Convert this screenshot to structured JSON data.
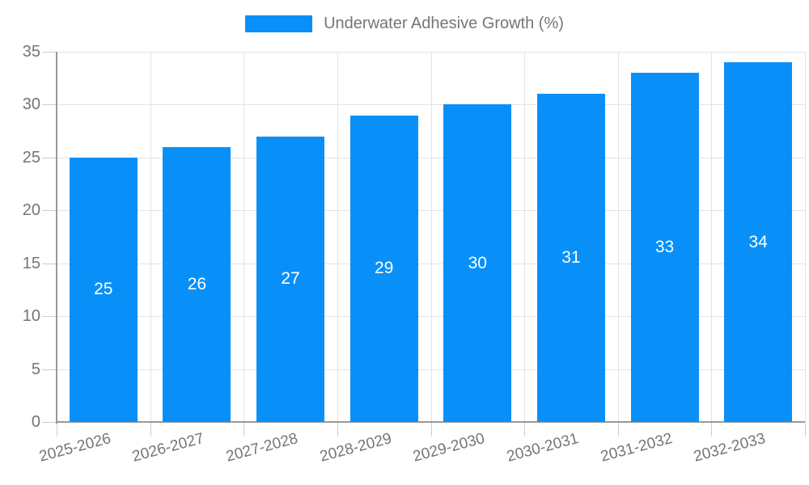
{
  "legend": {
    "label": "Underwater Adhesive Growth (%)"
  },
  "chart_data": {
    "type": "bar",
    "title": "",
    "categories": [
      "2025-2026",
      "2026-2027",
      "2027-2028",
      "2028-2029",
      "2029-2030",
      "2030-2031",
      "2031-2032",
      "2032-2033"
    ],
    "values": [
      25,
      26,
      27,
      29,
      30,
      31,
      33,
      34
    ],
    "series_name": "Underwater Adhesive Growth (%)",
    "xlabel": "",
    "ylabel": "",
    "ylim": [
      0,
      35
    ],
    "yticks": [
      0,
      5,
      10,
      15,
      20,
      25,
      30,
      35
    ],
    "grid": true,
    "legend_position": "top-center",
    "bar_labels_inside": true,
    "colors": {
      "bar": "#0990F8",
      "bar_value_text": "#ffffff",
      "axis_text": "#757575",
      "gridline": "#e3e3e3",
      "tick": "#cccccc",
      "axis_line": "#999999",
      "background": "#ffffff"
    }
  }
}
